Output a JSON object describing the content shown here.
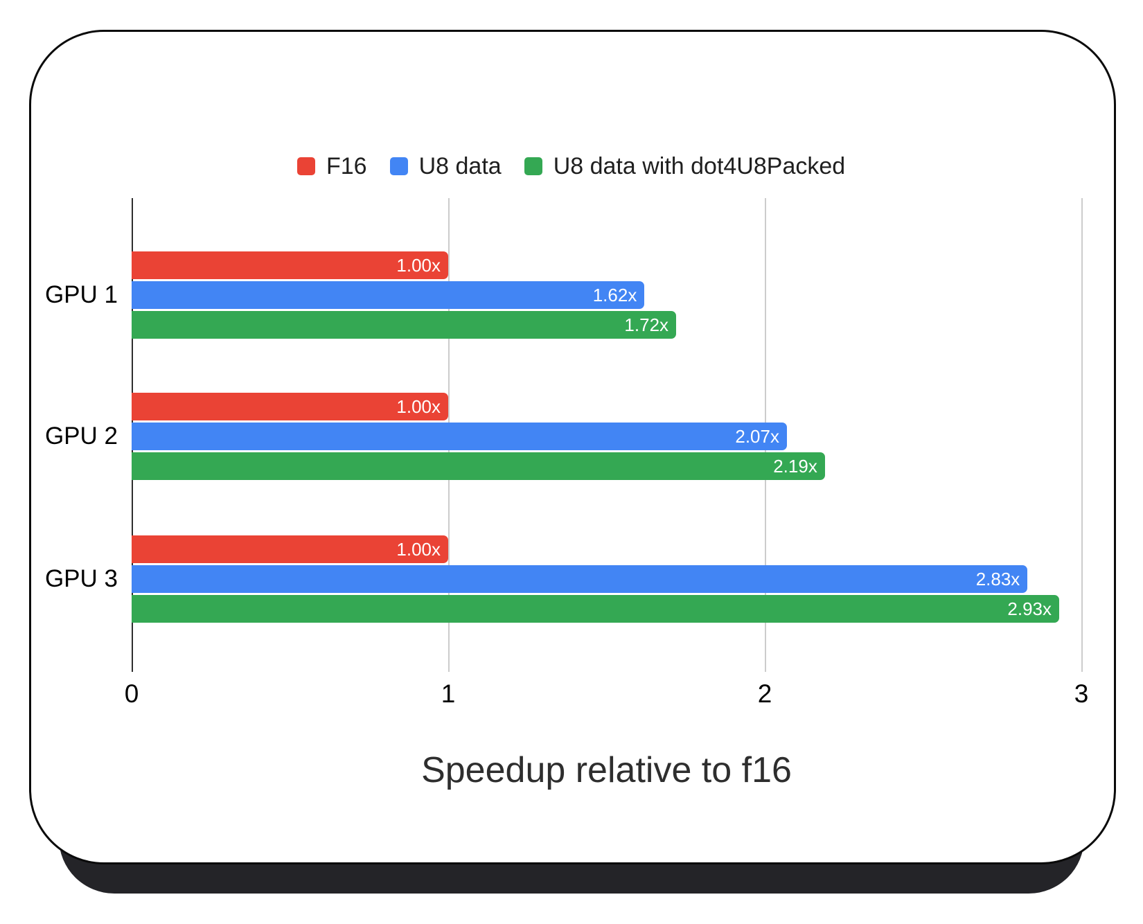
{
  "chart_data": {
    "type": "bar",
    "orientation": "horizontal",
    "categories": [
      "GPU 1",
      "GPU 2",
      "GPU 3"
    ],
    "series": [
      {
        "name": "F16",
        "color": "#ea4335",
        "values": [
          1.0,
          1.0,
          1.0
        ],
        "labels": [
          "1.00x",
          "1.00x",
          "1.00x"
        ]
      },
      {
        "name": "U8 data",
        "color": "#4285f4",
        "values": [
          1.62,
          2.07,
          2.83
        ],
        "labels": [
          "1.62x",
          "2.07x",
          "2.83x"
        ]
      },
      {
        "name": "U8 data with dot4U8Packed",
        "color": "#34a853",
        "values": [
          1.72,
          2.19,
          2.93
        ],
        "labels": [
          "1.72x",
          "2.19x",
          "2.93x"
        ]
      }
    ],
    "xlabel": "Speedup relative to f16",
    "xlim": [
      0,
      3
    ],
    "xticks": [
      0,
      1,
      2,
      3
    ],
    "grid": true,
    "legend_position": "top"
  },
  "colors": {
    "card_background": "#ffffff",
    "card_border": "#0a0a0a",
    "card_shadow": "#242428",
    "axis_line": "#2e2e2e",
    "gridline": "#cccccc",
    "bar_value_text": "#ffffff",
    "tick_text": "#000000",
    "title_text": "#2e2e2e"
  }
}
